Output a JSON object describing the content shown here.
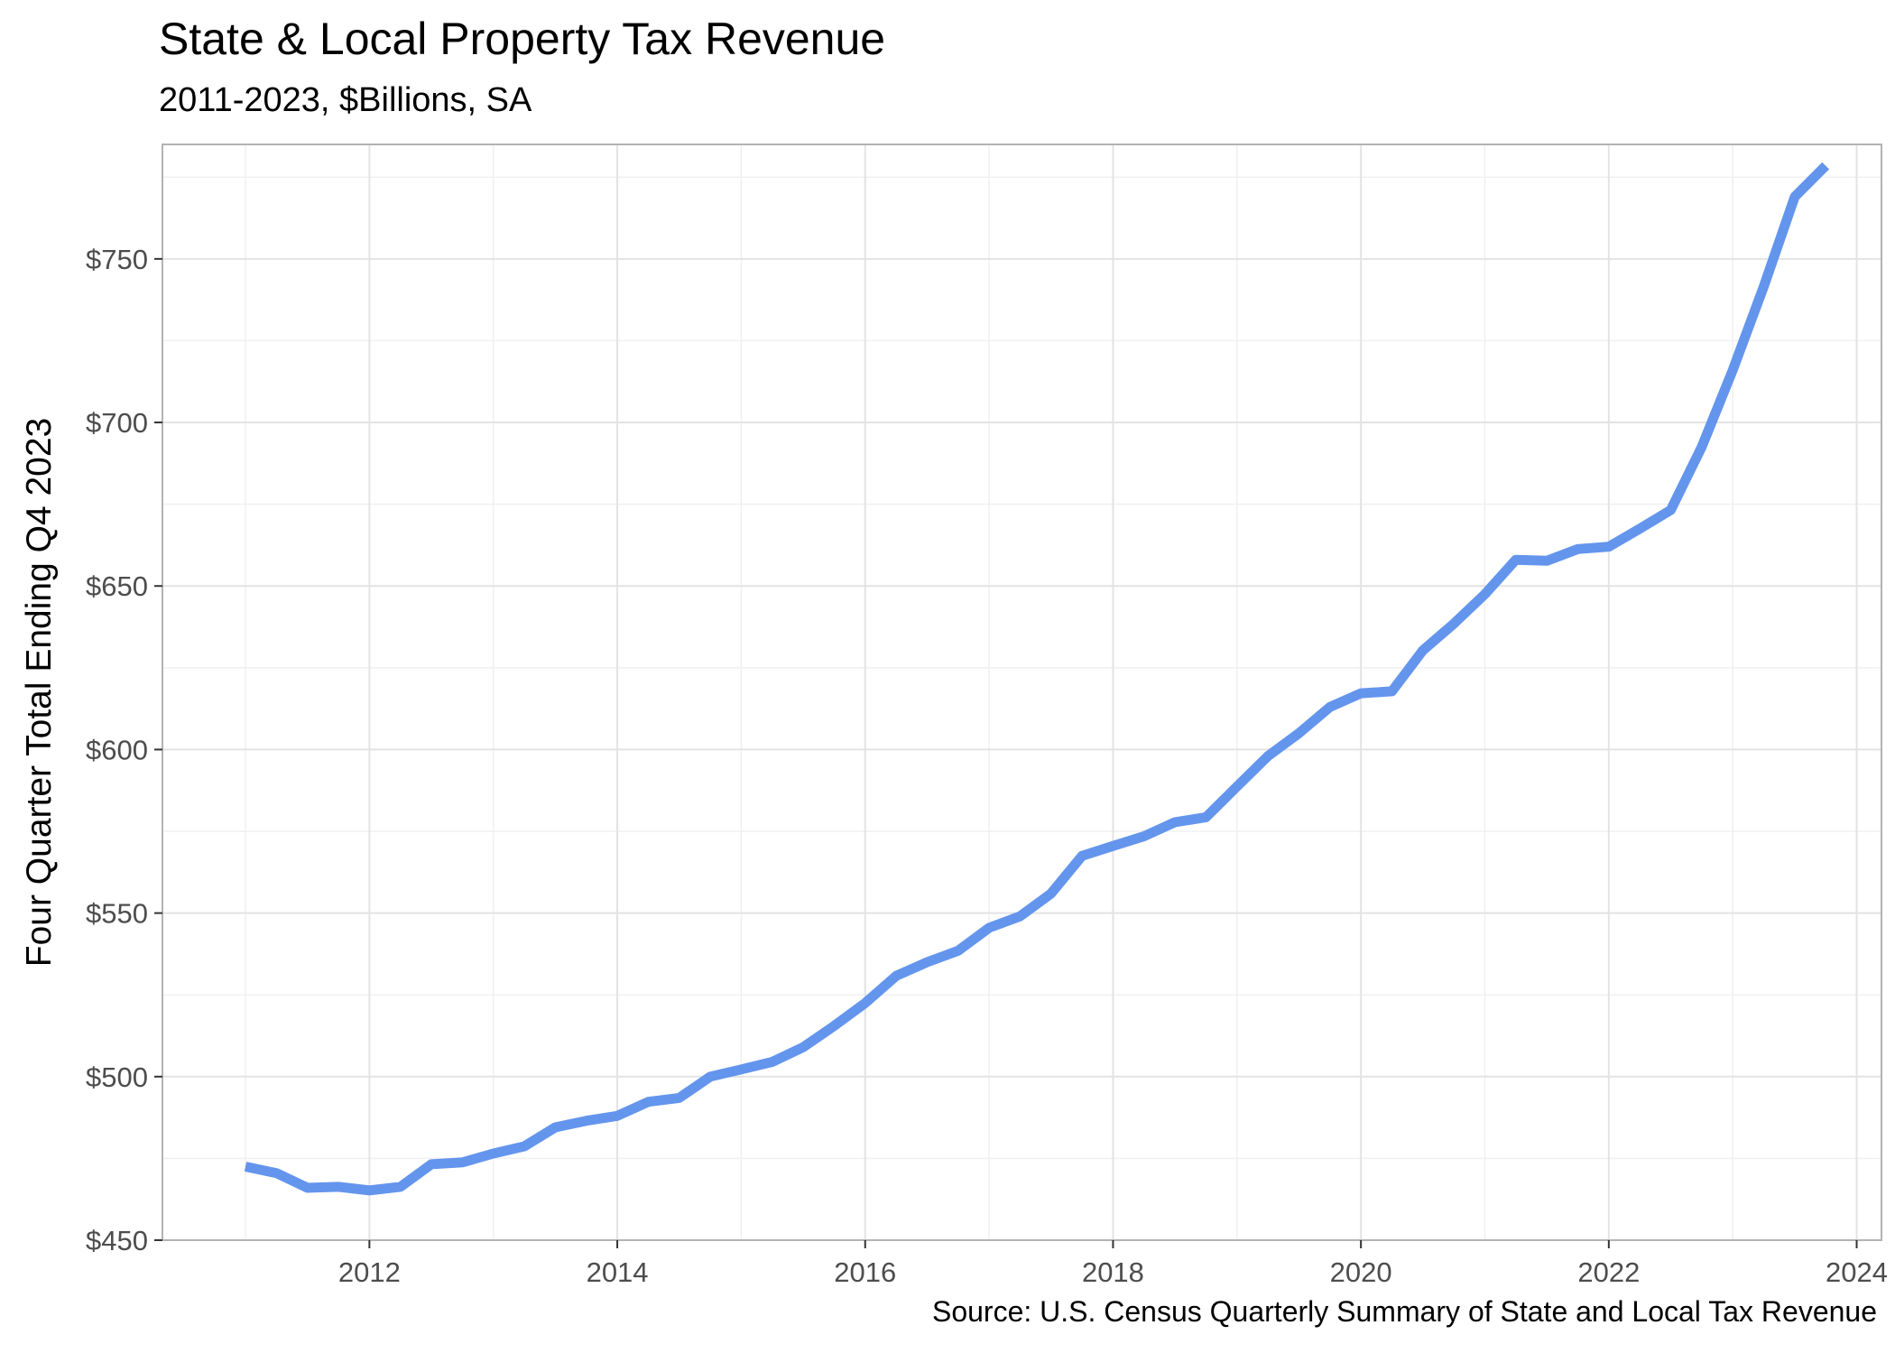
{
  "chart_data": {
    "type": "line",
    "title": "State & Local Property Tax Revenue",
    "subtitle": "2011-2023, $Billions, SA",
    "caption": "Source: U.S. Census Quarterly Summary of State and Local Tax Revenue",
    "xlabel": "",
    "ylabel": "Four Quarter Total Ending Q4 2023",
    "xlim": [
      2010.33,
      2024.2
    ],
    "ylim": [
      450,
      785
    ],
    "x_ticks": [
      2012,
      2014,
      2016,
      2018,
      2020,
      2022,
      2024
    ],
    "x_tick_labels": [
      "2012",
      "2014",
      "2016",
      "2018",
      "2020",
      "2022",
      "2024"
    ],
    "y_ticks": [
      450,
      500,
      550,
      600,
      650,
      700,
      750
    ],
    "y_tick_labels": [
      "$450",
      "$500",
      "$550",
      "$600",
      "$650",
      "$700",
      "$750"
    ],
    "grid": true,
    "line_color": "#6495ED",
    "series": [
      {
        "x": [
          2011.0,
          2011.25,
          2011.5,
          2011.75,
          2012.0,
          2012.25,
          2012.5,
          2012.75,
          2013.0,
          2013.25,
          2013.5,
          2013.75,
          2014.0,
          2014.25,
          2014.5,
          2014.75,
          2015.0,
          2015.25,
          2015.5,
          2015.75,
          2016.0,
          2016.25,
          2016.5,
          2016.75,
          2017.0,
          2017.25,
          2017.5,
          2017.75,
          2018.0,
          2018.25,
          2018.5,
          2018.75,
          2019.0,
          2019.25,
          2019.5,
          2019.75,
          2020.0,
          2020.25,
          2020.5,
          2020.75,
          2021.0,
          2021.25,
          2021.5,
          2021.75,
          2022.0,
          2022.25,
          2022.5,
          2022.75,
          2023.0,
          2023.25,
          2023.5,
          2023.75
        ],
        "values": [
          472.5,
          470.5,
          466,
          466.3,
          465.2,
          466.3,
          473.2,
          473.8,
          476.5,
          478.7,
          484.5,
          486.5,
          488,
          492.3,
          493.5,
          500,
          502.2,
          504.5,
          509,
          515.5,
          522.5,
          530.8,
          535,
          538.5,
          545.5,
          549,
          556,
          567.5,
          570.5,
          573.5,
          577.8,
          579.3,
          588.7,
          598,
          605,
          613,
          617.2,
          617.8,
          630.3,
          638.5,
          647.5,
          658,
          657.7,
          661.3,
          662,
          667.5,
          673.2,
          692.5,
          716,
          741.5,
          769,
          778.5
        ]
      }
    ]
  }
}
